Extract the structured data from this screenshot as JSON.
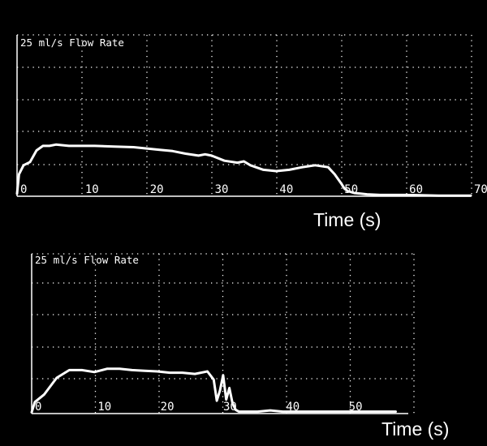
{
  "colors": {
    "background": "#000000",
    "foreground": "#ffffff"
  },
  "chart_data": [
    {
      "type": "line",
      "title": "25 ml/s Flow Rate",
      "xlabel": "Time (s)",
      "ylabel": "",
      "xlim": [
        0,
        70
      ],
      "ylim": [
        0,
        25
      ],
      "grid": true,
      "x_ticks": [
        "0",
        "10",
        "20",
        "30",
        "40",
        "50",
        "60",
        "70"
      ],
      "series": [
        {
          "x": [
            0,
            0.3,
            1,
            2,
            3,
            4,
            5,
            6,
            8,
            10,
            12,
            15,
            18,
            20,
            22,
            24,
            26,
            28,
            29,
            30,
            32,
            34,
            35,
            36,
            38,
            40,
            42,
            44,
            46,
            48,
            49,
            50,
            50.5,
            51,
            52,
            53,
            54,
            56,
            58,
            60,
            65,
            70
          ],
          "y": [
            0.4,
            3.4,
            4.8,
            5.3,
            7.1,
            7.8,
            7.8,
            8.0,
            7.8,
            7.8,
            7.8,
            7.7,
            7.6,
            7.4,
            7.2,
            7.0,
            6.6,
            6.3,
            6.5,
            6.3,
            5.5,
            5.2,
            5.4,
            4.8,
            4.1,
            3.9,
            4.1,
            4.5,
            4.8,
            4.5,
            3.4,
            2.0,
            1.2,
            0.8,
            0.5,
            0.4,
            0.3,
            0.2,
            0.2,
            0.2,
            0.1,
            0.1
          ]
        }
      ]
    },
    {
      "type": "line",
      "title": "25 ml/s Flow Rate",
      "xlabel": "Time (s)",
      "ylabel": "",
      "xlim": [
        0,
        60
      ],
      "ylim": [
        0,
        25
      ],
      "grid": true,
      "x_ticks": [
        "0",
        "10",
        "20",
        "30",
        "40",
        "50"
      ],
      "series": [
        {
          "x": [
            0,
            0.5,
            2,
            4,
            6,
            8,
            10,
            12,
            14,
            16,
            18,
            20,
            22,
            24,
            26,
            28,
            29,
            29.5,
            30,
            30.5,
            31,
            31.5,
            32,
            32.5,
            33,
            34,
            36,
            38,
            40,
            45,
            50,
            55,
            58
          ],
          "y": [
            0.2,
            1.8,
            3.0,
            5.6,
            6.8,
            6.8,
            6.5,
            7.0,
            7.0,
            6.8,
            6.7,
            6.6,
            6.4,
            6.4,
            6.2,
            6.6,
            5.3,
            2.0,
            3.6,
            6.0,
            2.2,
            4.0,
            1.6,
            0.6,
            0.3,
            0.3,
            0.3,
            0.5,
            0.3,
            0.3,
            0.3,
            0.3,
            0.3
          ]
        }
      ]
    }
  ]
}
